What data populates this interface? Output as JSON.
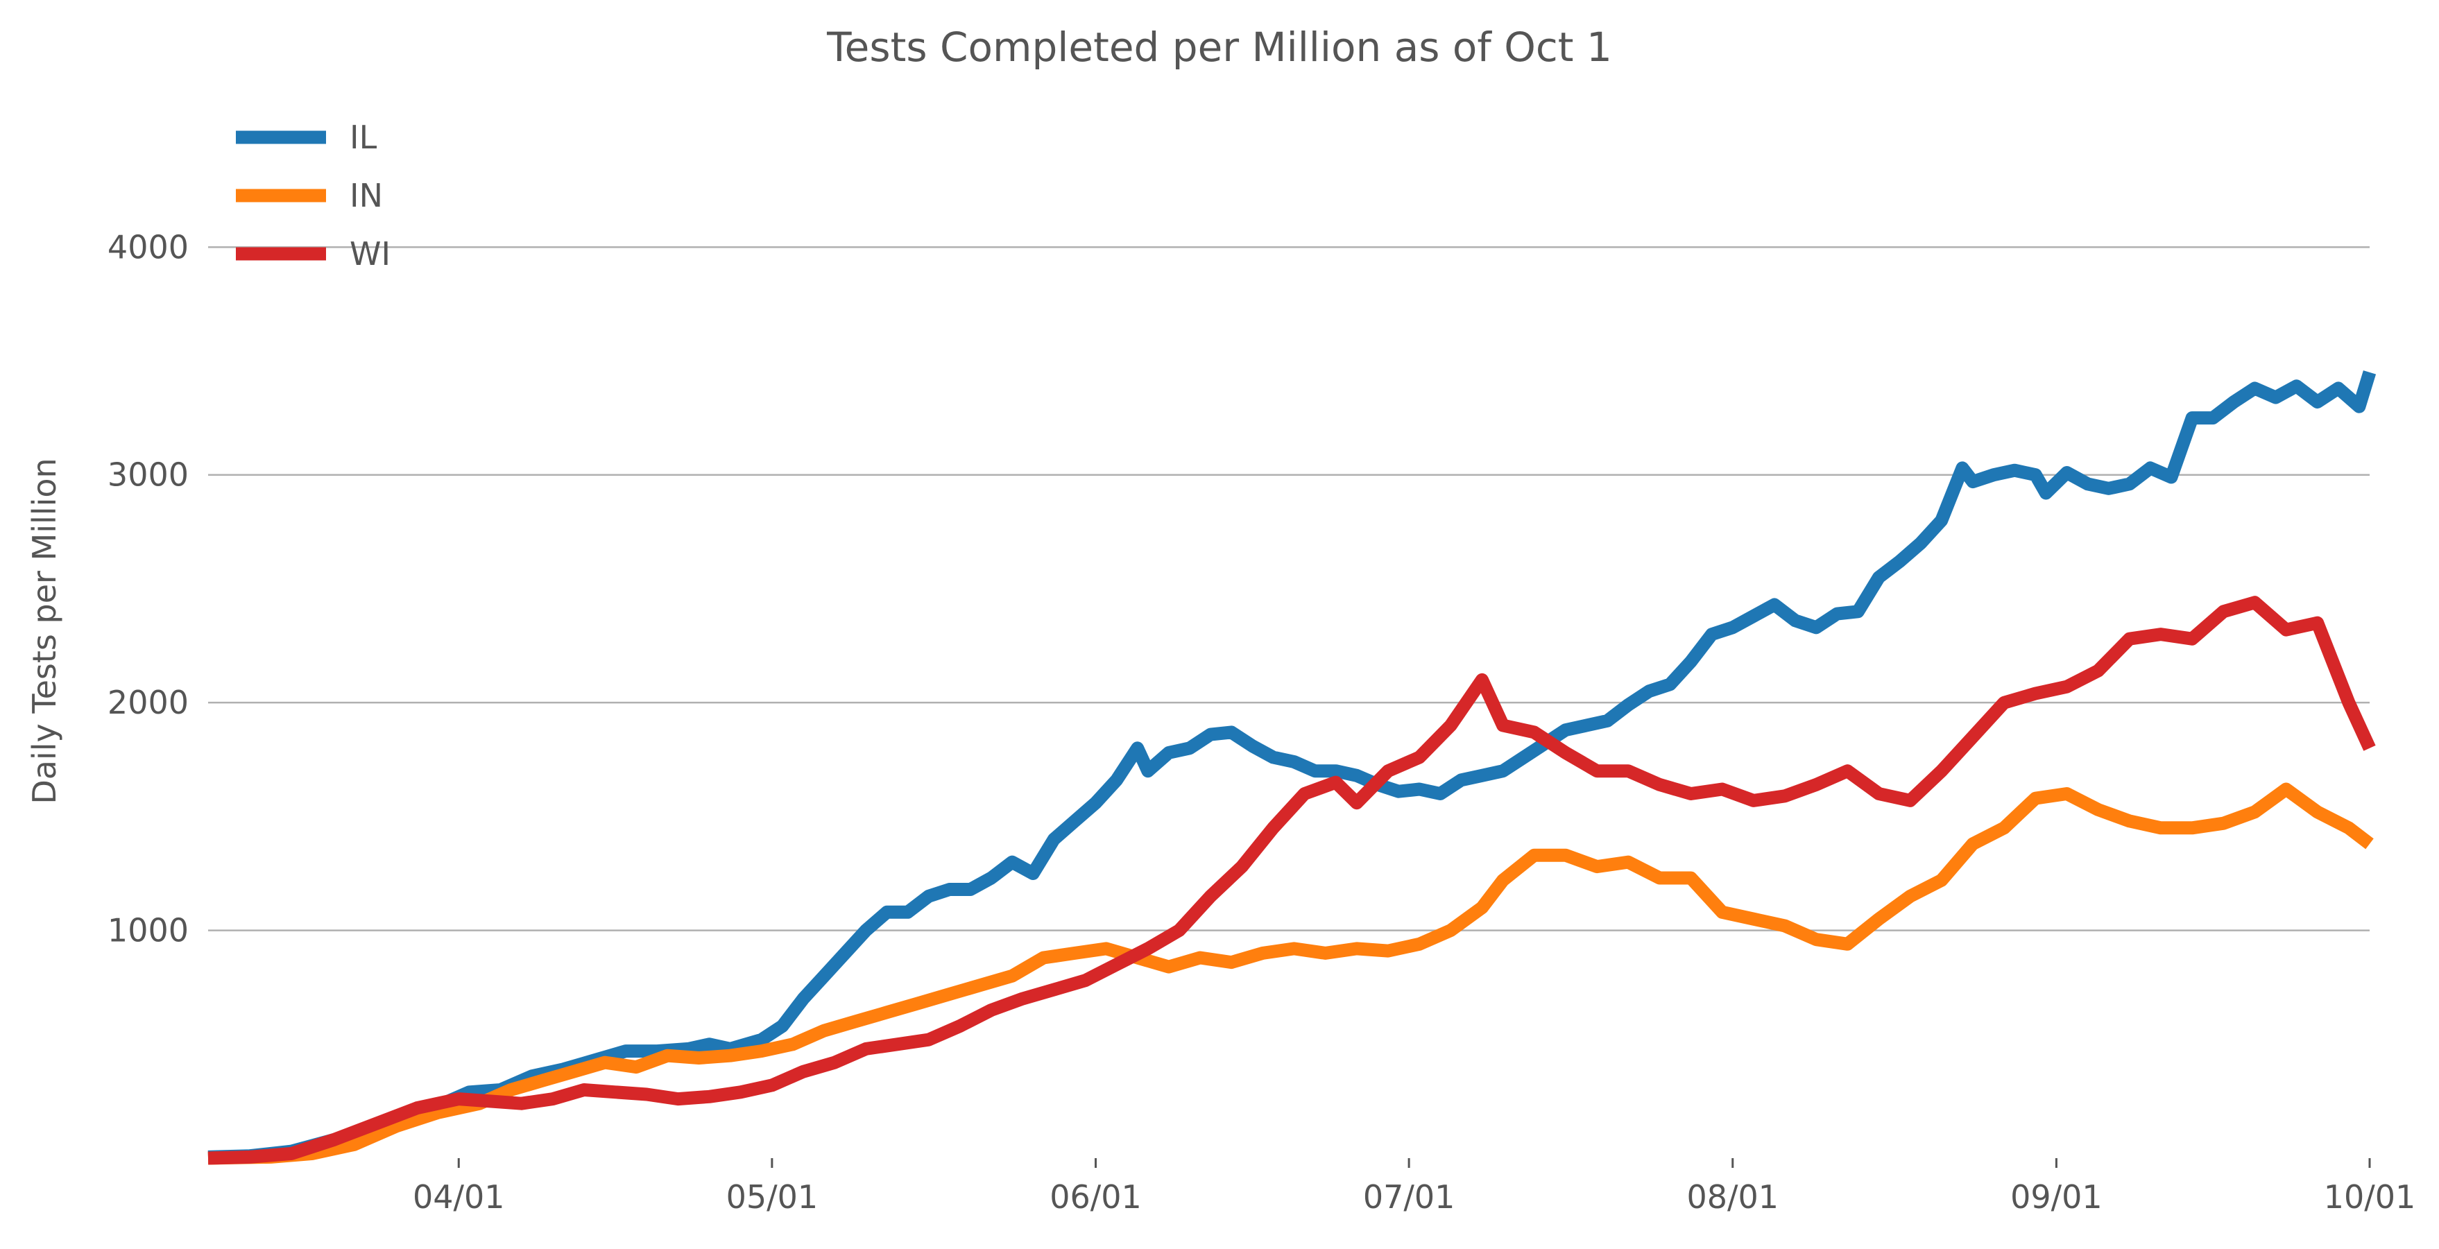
{
  "chart_data": {
    "type": "line",
    "title": "Tests Completed per Million as of Oct 1",
    "xlabel": "",
    "ylabel": "Daily Tests per Million",
    "x_start": "2020-03-08",
    "x_end": "2020-10-01",
    "xlim": [
      "2020-03-08",
      "2020-10-01"
    ],
    "ylim": [
      0,
      4750
    ],
    "grid": "horizontal",
    "legend_position": "top-left",
    "x_ticks": [
      {
        "date": "2020-04-01",
        "label": "04/01"
      },
      {
        "date": "2020-05-01",
        "label": "05/01"
      },
      {
        "date": "2020-06-01",
        "label": "06/01"
      },
      {
        "date": "2020-07-01",
        "label": "07/01"
      },
      {
        "date": "2020-08-01",
        "label": "08/01"
      },
      {
        "date": "2020-09-01",
        "label": "09/01"
      },
      {
        "date": "2020-10-01",
        "label": "10/01"
      }
    ],
    "y_ticks": [
      {
        "value": 1000,
        "label": "1000"
      },
      {
        "value": 2000,
        "label": "2000"
      },
      {
        "value": 3000,
        "label": "3000"
      },
      {
        "value": 4000,
        "label": "4000"
      }
    ],
    "series": [
      {
        "name": "IL",
        "color": "#1f77b4",
        "points": [
          [
            "2020-03-08",
            5
          ],
          [
            "2020-03-12",
            10
          ],
          [
            "2020-03-16",
            30
          ],
          [
            "2020-03-20",
            80
          ],
          [
            "2020-03-24",
            130
          ],
          [
            "2020-03-27",
            180
          ],
          [
            "2020-03-30",
            230
          ],
          [
            "2020-04-02",
            290
          ],
          [
            "2020-04-05",
            300
          ],
          [
            "2020-04-08",
            360
          ],
          [
            "2020-04-11",
            390
          ],
          [
            "2020-04-14",
            430
          ],
          [
            "2020-04-17",
            470
          ],
          [
            "2020-04-20",
            470
          ],
          [
            "2020-04-23",
            480
          ],
          [
            "2020-04-25",
            500
          ],
          [
            "2020-04-27",
            480
          ],
          [
            "2020-04-30",
            520
          ],
          [
            "2020-05-02",
            580
          ],
          [
            "2020-05-04",
            700
          ],
          [
            "2020-05-06",
            800
          ],
          [
            "2020-05-08",
            900
          ],
          [
            "2020-05-10",
            1000
          ],
          [
            "2020-05-12",
            1080
          ],
          [
            "2020-05-14",
            1080
          ],
          [
            "2020-05-16",
            1150
          ],
          [
            "2020-05-18",
            1180
          ],
          [
            "2020-05-20",
            1180
          ],
          [
            "2020-05-22",
            1230
          ],
          [
            "2020-05-24",
            1300
          ],
          [
            "2020-05-26",
            1250
          ],
          [
            "2020-05-28",
            1400
          ],
          [
            "2020-05-30",
            1480
          ],
          [
            "2020-06-01",
            1560
          ],
          [
            "2020-06-03",
            1660
          ],
          [
            "2020-06-05",
            1800
          ],
          [
            "2020-06-06",
            1700
          ],
          [
            "2020-06-08",
            1780
          ],
          [
            "2020-06-10",
            1800
          ],
          [
            "2020-06-12",
            1860
          ],
          [
            "2020-06-14",
            1870
          ],
          [
            "2020-06-16",
            1810
          ],
          [
            "2020-06-18",
            1760
          ],
          [
            "2020-06-20",
            1740
          ],
          [
            "2020-06-22",
            1700
          ],
          [
            "2020-06-24",
            1700
          ],
          [
            "2020-06-26",
            1680
          ],
          [
            "2020-06-28",
            1640
          ],
          [
            "2020-06-30",
            1610
          ],
          [
            "2020-07-02",
            1620
          ],
          [
            "2020-07-04",
            1600
          ],
          [
            "2020-07-06",
            1660
          ],
          [
            "2020-07-08",
            1680
          ],
          [
            "2020-07-10",
            1700
          ],
          [
            "2020-07-12",
            1760
          ],
          [
            "2020-07-14",
            1820
          ],
          [
            "2020-07-16",
            1880
          ],
          [
            "2020-07-18",
            1900
          ],
          [
            "2020-07-20",
            1920
          ],
          [
            "2020-07-22",
            1990
          ],
          [
            "2020-07-24",
            2050
          ],
          [
            "2020-07-26",
            2080
          ],
          [
            "2020-07-28",
            2180
          ],
          [
            "2020-07-30",
            2300
          ],
          [
            "2020-08-01",
            2330
          ],
          [
            "2020-08-03",
            2380
          ],
          [
            "2020-08-05",
            2430
          ],
          [
            "2020-08-07",
            2360
          ],
          [
            "2020-08-09",
            2330
          ],
          [
            "2020-08-11",
            2390
          ],
          [
            "2020-08-13",
            2400
          ],
          [
            "2020-08-15",
            2550
          ],
          [
            "2020-08-17",
            2620
          ],
          [
            "2020-08-19",
            2700
          ],
          [
            "2020-08-21",
            2800
          ],
          [
            "2020-08-23",
            3030
          ],
          [
            "2020-08-24",
            2970
          ],
          [
            "2020-08-26",
            3000
          ],
          [
            "2020-08-28",
            3020
          ],
          [
            "2020-08-30",
            3000
          ],
          [
            "2020-08-31",
            2920
          ],
          [
            "2020-09-02",
            3010
          ],
          [
            "2020-09-04",
            2960
          ],
          [
            "2020-09-06",
            2940
          ],
          [
            "2020-09-08",
            2960
          ],
          [
            "2020-09-10",
            3030
          ],
          [
            "2020-09-12",
            2990
          ],
          [
            "2020-09-14",
            3250
          ],
          [
            "2020-09-16",
            3250
          ],
          [
            "2020-09-18",
            3320
          ],
          [
            "2020-09-20",
            3380
          ],
          [
            "2020-09-22",
            3340
          ],
          [
            "2020-09-24",
            3390
          ],
          [
            "2020-09-26",
            3320
          ],
          [
            "2020-09-28",
            3380
          ],
          [
            "2020-09-30",
            3300
          ],
          [
            "2020-10-01",
            3450
          ]
        ]
      },
      {
        "name": "IN",
        "color": "#ff7f0e",
        "points": [
          [
            "2020-03-08",
            0
          ],
          [
            "2020-03-14",
            5
          ],
          [
            "2020-03-18",
            20
          ],
          [
            "2020-03-22",
            60
          ],
          [
            "2020-03-26",
            140
          ],
          [
            "2020-03-30",
            200
          ],
          [
            "2020-04-03",
            240
          ],
          [
            "2020-04-06",
            300
          ],
          [
            "2020-04-09",
            340
          ],
          [
            "2020-04-12",
            380
          ],
          [
            "2020-04-15",
            420
          ],
          [
            "2020-04-18",
            400
          ],
          [
            "2020-04-21",
            450
          ],
          [
            "2020-04-24",
            440
          ],
          [
            "2020-04-27",
            450
          ],
          [
            "2020-04-30",
            470
          ],
          [
            "2020-05-03",
            500
          ],
          [
            "2020-05-06",
            560
          ],
          [
            "2020-05-09",
            600
          ],
          [
            "2020-05-12",
            640
          ],
          [
            "2020-05-15",
            680
          ],
          [
            "2020-05-18",
            720
          ],
          [
            "2020-05-21",
            760
          ],
          [
            "2020-05-24",
            800
          ],
          [
            "2020-05-27",
            880
          ],
          [
            "2020-05-30",
            900
          ],
          [
            "2020-06-02",
            920
          ],
          [
            "2020-06-05",
            880
          ],
          [
            "2020-06-08",
            840
          ],
          [
            "2020-06-11",
            880
          ],
          [
            "2020-06-14",
            860
          ],
          [
            "2020-06-17",
            900
          ],
          [
            "2020-06-20",
            920
          ],
          [
            "2020-06-23",
            900
          ],
          [
            "2020-06-26",
            920
          ],
          [
            "2020-06-29",
            910
          ],
          [
            "2020-07-02",
            940
          ],
          [
            "2020-07-05",
            1000
          ],
          [
            "2020-07-08",
            1100
          ],
          [
            "2020-07-10",
            1220
          ],
          [
            "2020-07-13",
            1330
          ],
          [
            "2020-07-16",
            1330
          ],
          [
            "2020-07-19",
            1280
          ],
          [
            "2020-07-22",
            1300
          ],
          [
            "2020-07-25",
            1230
          ],
          [
            "2020-07-28",
            1230
          ],
          [
            "2020-07-31",
            1080
          ],
          [
            "2020-08-03",
            1050
          ],
          [
            "2020-08-06",
            1020
          ],
          [
            "2020-08-09",
            960
          ],
          [
            "2020-08-12",
            940
          ],
          [
            "2020-08-15",
            1050
          ],
          [
            "2020-08-18",
            1150
          ],
          [
            "2020-08-21",
            1220
          ],
          [
            "2020-08-24",
            1380
          ],
          [
            "2020-08-27",
            1450
          ],
          [
            "2020-08-30",
            1580
          ],
          [
            "2020-09-02",
            1600
          ],
          [
            "2020-09-05",
            1530
          ],
          [
            "2020-09-08",
            1480
          ],
          [
            "2020-09-11",
            1450
          ],
          [
            "2020-09-14",
            1450
          ],
          [
            "2020-09-17",
            1470
          ],
          [
            "2020-09-20",
            1520
          ],
          [
            "2020-09-23",
            1620
          ],
          [
            "2020-09-26",
            1520
          ],
          [
            "2020-09-29",
            1450
          ],
          [
            "2020-10-01",
            1380
          ]
        ]
      },
      {
        "name": "WI",
        "color": "#d62728",
        "points": [
          [
            "2020-03-08",
            0
          ],
          [
            "2020-03-12",
            5
          ],
          [
            "2020-03-16",
            20
          ],
          [
            "2020-03-20",
            80
          ],
          [
            "2020-03-24",
            150
          ],
          [
            "2020-03-28",
            220
          ],
          [
            "2020-04-01",
            260
          ],
          [
            "2020-04-04",
            250
          ],
          [
            "2020-04-07",
            240
          ],
          [
            "2020-04-10",
            260
          ],
          [
            "2020-04-13",
            300
          ],
          [
            "2020-04-16",
            290
          ],
          [
            "2020-04-19",
            280
          ],
          [
            "2020-04-22",
            260
          ],
          [
            "2020-04-25",
            270
          ],
          [
            "2020-04-28",
            290
          ],
          [
            "2020-05-01",
            320
          ],
          [
            "2020-05-04",
            380
          ],
          [
            "2020-05-07",
            420
          ],
          [
            "2020-05-10",
            480
          ],
          [
            "2020-05-13",
            500
          ],
          [
            "2020-05-16",
            520
          ],
          [
            "2020-05-19",
            580
          ],
          [
            "2020-05-22",
            650
          ],
          [
            "2020-05-25",
            700
          ],
          [
            "2020-05-28",
            740
          ],
          [
            "2020-05-31",
            780
          ],
          [
            "2020-06-03",
            850
          ],
          [
            "2020-06-06",
            920
          ],
          [
            "2020-06-09",
            1000
          ],
          [
            "2020-06-12",
            1150
          ],
          [
            "2020-06-15",
            1280
          ],
          [
            "2020-06-18",
            1450
          ],
          [
            "2020-06-21",
            1600
          ],
          [
            "2020-06-24",
            1650
          ],
          [
            "2020-06-26",
            1560
          ],
          [
            "2020-06-29",
            1700
          ],
          [
            "2020-07-02",
            1760
          ],
          [
            "2020-07-05",
            1900
          ],
          [
            "2020-07-08",
            2100
          ],
          [
            "2020-07-10",
            1900
          ],
          [
            "2020-07-13",
            1870
          ],
          [
            "2020-07-16",
            1780
          ],
          [
            "2020-07-19",
            1700
          ],
          [
            "2020-07-22",
            1700
          ],
          [
            "2020-07-25",
            1640
          ],
          [
            "2020-07-28",
            1600
          ],
          [
            "2020-07-31",
            1620
          ],
          [
            "2020-08-03",
            1570
          ],
          [
            "2020-08-06",
            1590
          ],
          [
            "2020-08-09",
            1640
          ],
          [
            "2020-08-12",
            1700
          ],
          [
            "2020-08-15",
            1600
          ],
          [
            "2020-08-18",
            1570
          ],
          [
            "2020-08-21",
            1700
          ],
          [
            "2020-08-24",
            1850
          ],
          [
            "2020-08-27",
            2000
          ],
          [
            "2020-08-30",
            2040
          ],
          [
            "2020-09-02",
            2070
          ],
          [
            "2020-09-05",
            2140
          ],
          [
            "2020-09-08",
            2280
          ],
          [
            "2020-09-11",
            2300
          ],
          [
            "2020-09-14",
            2280
          ],
          [
            "2020-09-17",
            2400
          ],
          [
            "2020-09-20",
            2440
          ],
          [
            "2020-09-23",
            2320
          ],
          [
            "2020-09-26",
            2350
          ],
          [
            "2020-09-29",
            2000
          ],
          [
            "2020-10-01",
            1800
          ]
        ]
      }
    ]
  }
}
